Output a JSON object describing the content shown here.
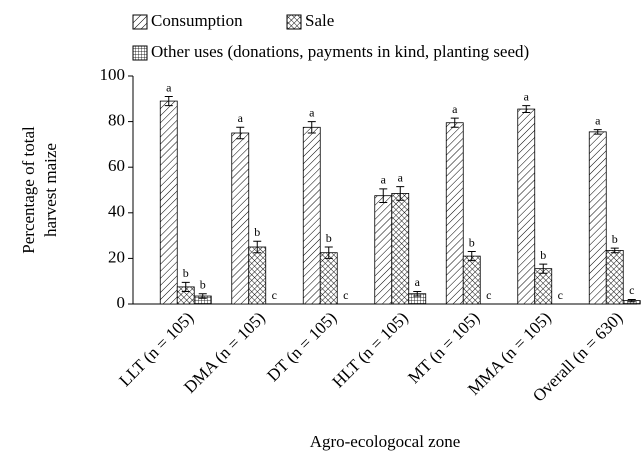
{
  "chart_data": {
    "type": "bar",
    "ylabel": [
      "Percentage of total",
      "harvest maize"
    ],
    "xlabel": "Agro-ecologocal zone",
    "categories": [
      "LLT (n = 105)",
      "DMA (n = 105)",
      "DT (n = 105)",
      "HLT (n = 105)",
      "MT (n = 105)",
      "MMA (n = 105)",
      "Overall (n = 630)"
    ],
    "series": [
      {
        "name": "Consumption",
        "pattern": "diagonal",
        "color": "#000000",
        "values": [
          89,
          75,
          77.5,
          47.5,
          79.5,
          85.5,
          75.5
        ],
        "errors": [
          2,
          2.5,
          2.5,
          3,
          2,
          1.5,
          1
        ],
        "letters": [
          "a",
          "a",
          "a",
          "a",
          "a",
          "a",
          "a"
        ]
      },
      {
        "name": "Sale",
        "pattern": "cross",
        "color": "#000000",
        "values": [
          7.5,
          25,
          22.5,
          48.5,
          21,
          15.5,
          23.5
        ],
        "errors": [
          2,
          2.5,
          2.5,
          3,
          2,
          2,
          1
        ],
        "letters": [
          "b",
          "b",
          "b",
          "a",
          "b",
          "b",
          "b"
        ]
      },
      {
        "name": "Other uses (donations, payments in kind, planting seed)",
        "pattern": "grid",
        "color": "#000000",
        "values": [
          3.5,
          0,
          0,
          4.5,
          0,
          0,
          1.5
        ],
        "errors": [
          1,
          0,
          0,
          1,
          0,
          0,
          0.5
        ],
        "letters": [
          "b",
          "c",
          "c",
          "a",
          "c",
          "c",
          "c"
        ]
      }
    ],
    "ylim": [
      0,
      100
    ],
    "yticks": [
      0,
      20,
      40,
      60,
      80,
      100
    ],
    "grid": false
  }
}
